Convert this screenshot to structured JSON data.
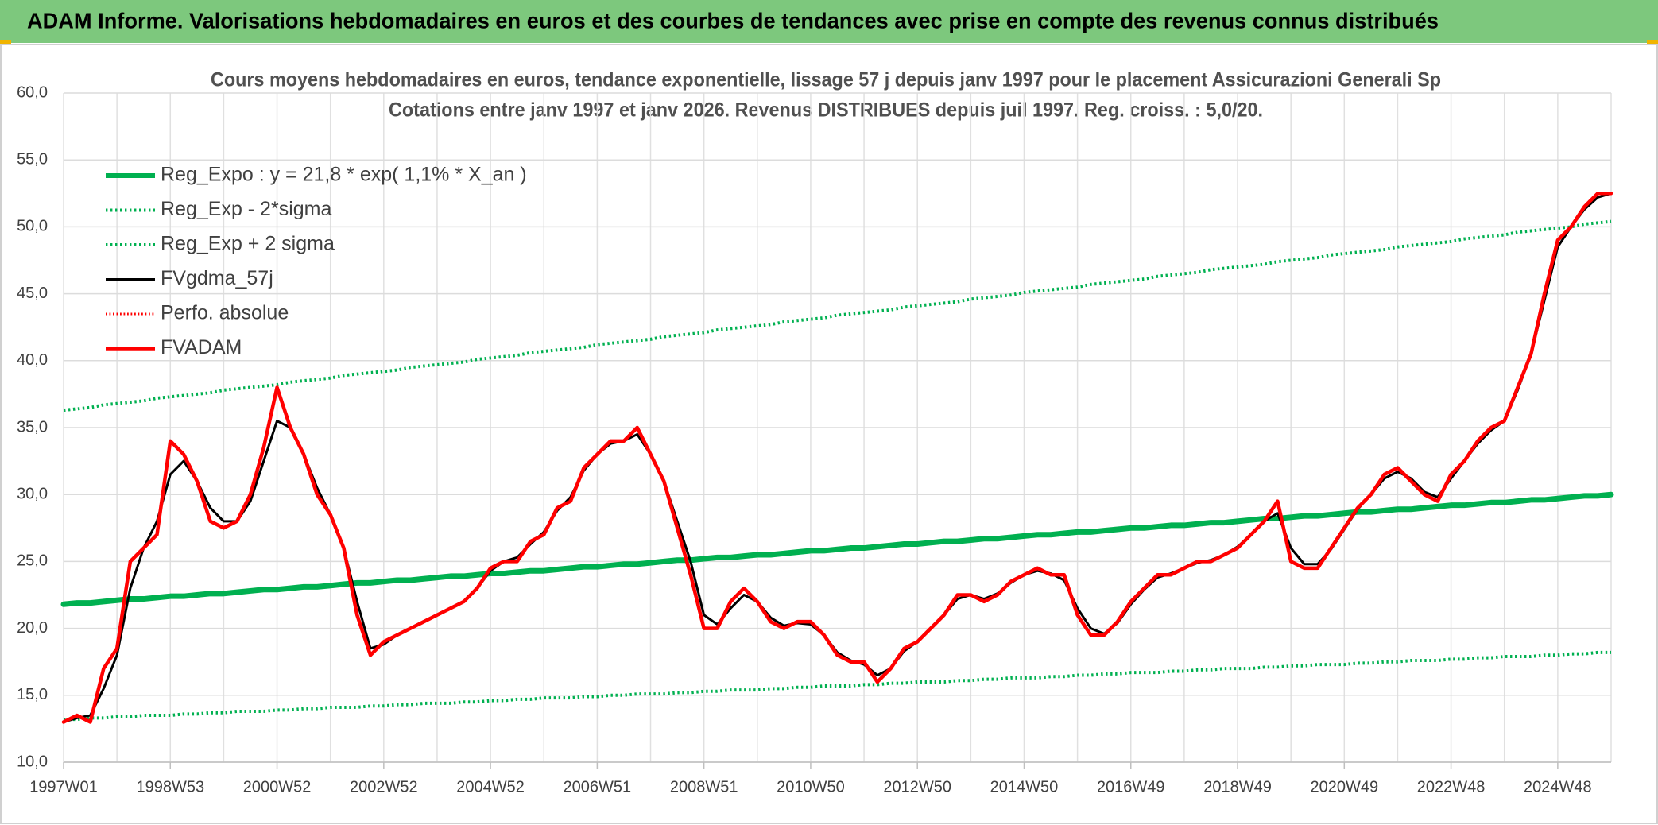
{
  "header": {
    "title": "ADAM Informe. Valorisations hebdomadaires en euros et des courbes de tendances avec prise en compte des revenus connus distribués"
  },
  "chart_data": {
    "type": "line",
    "title": "Cours moyens hebdomadaires en euros, tendance exponentielle, lissage 57 j depuis janv 1997 pour le placement Assicurazioni Generali Sp",
    "subtitle": "Cotations entre janv 1997 et janv 2026. Revenus DISTRIBUES depuis juil 1997. Reg. croiss. : 5,0/20.",
    "categories": [
      "1997W01",
      null,
      null,
      null,
      null,
      null,
      null,
      null,
      "1998W53",
      null,
      null,
      null,
      null,
      null,
      null,
      null,
      "2000W52",
      null,
      null,
      null,
      null,
      null,
      null,
      null,
      "2002W52",
      null,
      null,
      null,
      null,
      null,
      null,
      null,
      "2004W52",
      null,
      null,
      null,
      null,
      null,
      null,
      null,
      "2006W51",
      null,
      null,
      null,
      null,
      null,
      null,
      null,
      "2008W51",
      null,
      null,
      null,
      null,
      null,
      null,
      null,
      "2010W50",
      null,
      null,
      null,
      null,
      null,
      null,
      null,
      "2012W50",
      null,
      null,
      null,
      null,
      null,
      null,
      null,
      "2014W50",
      null,
      null,
      null,
      null,
      null,
      null,
      null,
      "2016W49",
      null,
      null,
      null,
      null,
      null,
      null,
      null,
      "2018W49",
      null,
      null,
      null,
      null,
      null,
      null,
      null,
      "2020W49",
      null,
      null,
      null,
      null,
      null,
      null,
      null,
      "2022W48",
      null,
      null,
      null,
      null,
      null,
      null,
      null,
      "2024W48",
      null,
      null,
      null,
      null
    ],
    "ylim": [
      10,
      60
    ],
    "yticks": [
      {
        "value": 10,
        "label": "10,0"
      },
      {
        "value": 15,
        "label": "15,0"
      },
      {
        "value": 20,
        "label": "20,0"
      },
      {
        "value": 25,
        "label": "25,0"
      },
      {
        "value": 30,
        "label": "30,0"
      },
      {
        "value": 35,
        "label": "35,0"
      },
      {
        "value": 40,
        "label": "40,0"
      },
      {
        "value": 45,
        "label": "45,0"
      },
      {
        "value": 50,
        "label": "50,0"
      },
      {
        "value": 55,
        "label": "55,0"
      },
      {
        "value": 60,
        "label": "60,0"
      }
    ],
    "grid": true,
    "legend": "upper left",
    "series": [
      {
        "name": "Reg_Expo : y = 21,8 * exp( 1,1% *  X_an )",
        "color": "#00b050",
        "style": "solid",
        "width": 7,
        "values": [
          21.8,
          21.9,
          21.9,
          22.0,
          22.1,
          22.2,
          22.2,
          22.3,
          22.4,
          22.4,
          22.5,
          22.6,
          22.6,
          22.7,
          22.8,
          22.9,
          22.9,
          23.0,
          23.1,
          23.1,
          23.2,
          23.3,
          23.4,
          23.4,
          23.5,
          23.6,
          23.6,
          23.7,
          23.8,
          23.9,
          23.9,
          24.0,
          24.1,
          24.1,
          24.2,
          24.3,
          24.3,
          24.4,
          24.5,
          24.6,
          24.6,
          24.7,
          24.8,
          24.8,
          24.9,
          25.0,
          25.1,
          25.1,
          25.2,
          25.3,
          25.3,
          25.4,
          25.5,
          25.5,
          25.6,
          25.7,
          25.8,
          25.8,
          25.9,
          26.0,
          26.0,
          26.1,
          26.2,
          26.3,
          26.3,
          26.4,
          26.5,
          26.5,
          26.6,
          26.7,
          26.7,
          26.8,
          26.9,
          27.0,
          27.0,
          27.1,
          27.2,
          27.2,
          27.3,
          27.4,
          27.5,
          27.5,
          27.6,
          27.7,
          27.7,
          27.8,
          27.9,
          27.9,
          28.0,
          28.1,
          28.2,
          28.2,
          28.3,
          28.4,
          28.4,
          28.5,
          28.6,
          28.7,
          28.7,
          28.8,
          28.9,
          28.9,
          29.0,
          29.1,
          29.2,
          29.2,
          29.3,
          29.4,
          29.4,
          29.5,
          29.6,
          29.6,
          29.7,
          29.8,
          29.9,
          29.9,
          30.0
        ]
      },
      {
        "name": "Reg_Exp - 2*sigma",
        "color": "#00b050",
        "style": "dotted",
        "width": 4,
        "values": [
          13.2,
          13.2,
          13.3,
          13.3,
          13.4,
          13.4,
          13.5,
          13.5,
          13.5,
          13.6,
          13.6,
          13.7,
          13.7,
          13.8,
          13.8,
          13.8,
          13.9,
          13.9,
          14.0,
          14.0,
          14.1,
          14.1,
          14.1,
          14.2,
          14.2,
          14.3,
          14.3,
          14.4,
          14.4,
          14.4,
          14.5,
          14.5,
          14.6,
          14.6,
          14.7,
          14.7,
          14.8,
          14.8,
          14.8,
          14.9,
          14.9,
          15.0,
          15.0,
          15.1,
          15.1,
          15.1,
          15.2,
          15.2,
          15.3,
          15.3,
          15.4,
          15.4,
          15.4,
          15.5,
          15.5,
          15.6,
          15.6,
          15.7,
          15.7,
          15.7,
          15.8,
          15.8,
          15.9,
          15.9,
          16.0,
          16.0,
          16.0,
          16.1,
          16.1,
          16.2,
          16.2,
          16.3,
          16.3,
          16.3,
          16.4,
          16.4,
          16.5,
          16.5,
          16.6,
          16.6,
          16.7,
          16.7,
          16.7,
          16.8,
          16.8,
          16.9,
          16.9,
          17.0,
          17.0,
          17.0,
          17.1,
          17.1,
          17.2,
          17.2,
          17.3,
          17.3,
          17.3,
          17.4,
          17.4,
          17.5,
          17.5,
          17.6,
          17.6,
          17.6,
          17.7,
          17.7,
          17.8,
          17.8,
          17.9,
          17.9,
          17.9,
          18.0,
          18.0,
          18.1,
          18.1,
          18.2,
          18.2
        ]
      },
      {
        "name": "Reg_Exp + 2 sigma",
        "color": "#00b050",
        "style": "dotted",
        "width": 4,
        "values": [
          36.3,
          36.4,
          36.5,
          36.7,
          36.8,
          36.9,
          37.0,
          37.2,
          37.3,
          37.4,
          37.5,
          37.6,
          37.8,
          37.9,
          38.0,
          38.1,
          38.2,
          38.4,
          38.5,
          38.6,
          38.7,
          38.9,
          39.0,
          39.1,
          39.2,
          39.3,
          39.5,
          39.6,
          39.7,
          39.8,
          39.9,
          40.1,
          40.2,
          40.3,
          40.4,
          40.6,
          40.7,
          40.8,
          40.9,
          41.0,
          41.2,
          41.3,
          41.4,
          41.5,
          41.6,
          41.8,
          41.9,
          42.0,
          42.1,
          42.3,
          42.4,
          42.5,
          42.6,
          42.7,
          42.9,
          43.0,
          43.1,
          43.2,
          43.4,
          43.5,
          43.6,
          43.7,
          43.8,
          44.0,
          44.1,
          44.2,
          44.3,
          44.4,
          44.6,
          44.7,
          44.8,
          44.9,
          45.1,
          45.2,
          45.3,
          45.4,
          45.5,
          45.7,
          45.8,
          45.9,
          46.0,
          46.1,
          46.3,
          46.4,
          46.5,
          46.6,
          46.8,
          46.9,
          47.0,
          47.1,
          47.2,
          47.4,
          47.5,
          47.6,
          47.7,
          47.9,
          48.0,
          48.1,
          48.2,
          48.3,
          48.5,
          48.6,
          48.7,
          48.8,
          48.9,
          49.1,
          49.2,
          49.3,
          49.4,
          49.6,
          49.7,
          49.8,
          49.9,
          50.0,
          50.2,
          50.3,
          50.4
        ]
      },
      {
        "name": "FVgdma_57j",
        "color": "#000000",
        "style": "solid",
        "width": 3,
        "values": [
          13,
          13.3,
          13.5,
          15.5,
          18,
          23,
          26,
          28,
          31.5,
          32.5,
          31,
          29,
          28,
          28,
          29.5,
          32.5,
          35.5,
          35,
          33,
          30.5,
          28.5,
          26,
          22,
          18.5,
          18.8,
          19.5,
          20,
          20.5,
          21,
          21.5,
          22,
          23,
          24.3,
          25,
          25.3,
          26.3,
          27.2,
          28.8,
          29.8,
          31.8,
          33,
          33.8,
          34,
          34.5,
          33,
          31,
          28,
          25,
          21,
          20.3,
          21.5,
          22.5,
          22,
          20.8,
          20.2,
          20.4,
          20.3,
          19.5,
          18.2,
          17.6,
          17.3,
          16.5,
          17,
          18.3,
          19,
          20,
          21,
          22.2,
          22.5,
          22.2,
          22.6,
          23.4,
          24,
          24.3,
          24.1,
          23.6,
          21.5,
          20,
          19.6,
          20.4,
          21.8,
          22.9,
          23.8,
          24.1,
          24.5,
          24.9,
          25.1,
          25.5,
          26.1,
          27,
          28,
          28.6,
          26,
          24.8,
          24.8,
          25.9,
          27.4,
          28.9,
          30,
          31.2,
          31.7,
          31.2,
          30.2,
          29.8,
          31.2,
          32.5,
          33.8,
          34.8,
          35.5,
          37.8,
          40.5,
          44.5,
          48.5,
          50,
          51.3,
          52.2,
          52.5
        ]
      },
      {
        "name": "Perfo. absolue",
        "color": "#ff0000",
        "style": "dotted",
        "width": 3,
        "values": [
          null,
          null,
          null,
          null,
          null,
          null,
          null,
          null,
          null,
          null,
          null,
          null,
          null,
          null,
          null,
          null,
          null,
          null,
          null,
          null,
          null,
          null,
          null,
          null,
          null,
          null,
          null,
          null,
          null,
          null,
          null,
          null,
          null,
          null,
          null,
          null,
          null,
          null,
          null,
          null,
          null,
          null,
          null,
          null,
          null,
          null,
          null,
          null,
          null,
          null,
          null,
          null,
          null,
          null,
          null,
          null,
          null,
          null,
          null,
          null,
          null,
          null,
          null,
          null,
          null,
          null,
          null,
          null,
          null,
          null,
          null,
          null,
          null,
          null,
          null,
          null,
          null,
          null,
          null,
          null,
          null,
          null,
          null,
          null,
          null,
          null,
          null,
          null,
          null,
          null,
          null,
          null,
          null,
          null,
          null,
          null,
          null,
          null,
          null,
          null,
          null,
          null,
          null,
          null,
          null,
          null,
          null,
          null,
          null,
          null,
          null,
          null,
          null,
          null,
          null,
          null,
          null
        ]
      },
      {
        "name": "FVADAM",
        "color": "#ff0000",
        "style": "solid",
        "width": 4.5,
        "values": [
          13,
          13.5,
          13,
          17,
          18.5,
          25,
          26,
          27,
          34,
          33,
          31,
          28,
          27.5,
          28,
          30,
          33.5,
          38,
          35,
          33,
          30,
          28.5,
          26,
          21,
          18,
          19,
          19.5,
          20,
          20.5,
          21,
          21.5,
          22,
          23,
          24.5,
          25,
          25,
          26.5,
          27,
          29,
          29.5,
          32,
          33,
          34,
          34,
          35,
          33,
          31,
          27.5,
          24,
          20,
          20,
          22,
          23,
          22,
          20.5,
          20,
          20.5,
          20.5,
          19.5,
          18,
          17.5,
          17.5,
          16,
          17,
          18.5,
          19,
          20,
          21,
          22.5,
          22.5,
          22,
          22.5,
          23.5,
          24,
          24.5,
          24,
          24,
          21,
          19.5,
          19.5,
          20.5,
          22,
          23,
          24,
          24,
          24.5,
          25,
          25,
          25.5,
          26,
          27,
          28,
          29.5,
          25,
          24.5,
          24.5,
          26,
          27.5,
          29,
          30,
          31.5,
          32,
          31,
          30,
          29.5,
          31.5,
          32.5,
          34,
          35,
          35.5,
          38,
          40.5,
          45,
          49,
          50,
          51.5,
          52.5,
          52.5
        ]
      }
    ]
  }
}
